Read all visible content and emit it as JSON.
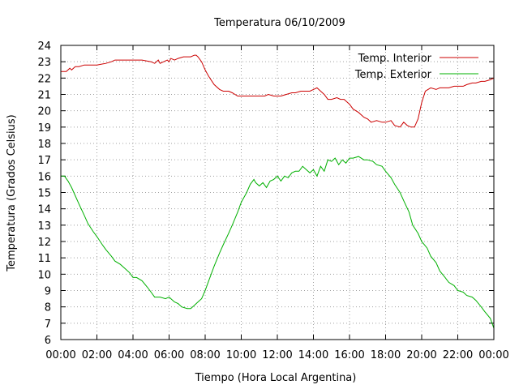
{
  "chart_data": {
    "type": "line",
    "title": "Temperatura 06/10/2009",
    "xlabel": "Tiempo (Hora Local Argentina)",
    "ylabel": "Temperatura (Grados Celsius)",
    "x_unit": "hours",
    "xlim": [
      0,
      24
    ],
    "ylim": [
      6,
      24
    ],
    "grid": true,
    "legend_position": "top-right",
    "x_ticks": [
      "00:00",
      "02:00",
      "04:00",
      "06:00",
      "08:00",
      "10:00",
      "12:00",
      "14:00",
      "16:00",
      "18:00",
      "20:00",
      "22:00",
      "00:00"
    ],
    "y_ticks": [
      "6",
      "7",
      "8",
      "9",
      "10",
      "11",
      "12",
      "13",
      "14",
      "15",
      "16",
      "17",
      "18",
      "19",
      "20",
      "21",
      "22",
      "23",
      "24"
    ],
    "series": [
      {
        "name": "Temp. Interior",
        "color": "#cc0000",
        "x": [
          0,
          0.3,
          0.5,
          0.6,
          0.8,
          1.0,
          1.3,
          1.5,
          1.7,
          2.0,
          2.5,
          2.8,
          3.0,
          3.3,
          3.7,
          4.0,
          4.5,
          5.0,
          5.2,
          5.4,
          5.5,
          5.7,
          5.9,
          6.0,
          6.1,
          6.3,
          6.5,
          6.8,
          7.0,
          7.2,
          7.4,
          7.5,
          7.6,
          7.8,
          8.0,
          8.2,
          8.5,
          8.8,
          9.0,
          9.3,
          9.5,
          9.8,
          10.0,
          10.3,
          10.5,
          10.8,
          11.0,
          11.3,
          11.5,
          11.8,
          12.0,
          12.2,
          12.5,
          12.8,
          13.0,
          13.3,
          13.5,
          13.7,
          13.8,
          14.0,
          14.2,
          14.4,
          14.6,
          14.8,
          15.0,
          15.3,
          15.5,
          15.7,
          16.0,
          16.2,
          16.5,
          16.8,
          17.0,
          17.2,
          17.5,
          17.8,
          18.0,
          18.3,
          18.5,
          18.8,
          19.0,
          19.2,
          19.4,
          19.6,
          19.8,
          20.0,
          20.2,
          20.5,
          20.8,
          21.0,
          21.3,
          21.5,
          21.8,
          22.0,
          22.3,
          22.5,
          22.8,
          23.0,
          23.3,
          23.5,
          23.8,
          24.0
        ],
        "values": [
          22.4,
          22.4,
          22.6,
          22.5,
          22.7,
          22.7,
          22.8,
          22.8,
          22.8,
          22.8,
          22.9,
          23.0,
          23.1,
          23.1,
          23.1,
          23.1,
          23.1,
          23.0,
          22.9,
          23.1,
          22.9,
          23.0,
          23.1,
          23.0,
          23.2,
          23.1,
          23.2,
          23.3,
          23.3,
          23.3,
          23.4,
          23.4,
          23.3,
          23.0,
          22.5,
          22.1,
          21.6,
          21.3,
          21.2,
          21.2,
          21.1,
          20.9,
          20.9,
          20.9,
          20.9,
          20.9,
          20.9,
          20.9,
          21.0,
          20.9,
          20.9,
          20.9,
          21.0,
          21.1,
          21.1,
          21.2,
          21.2,
          21.2,
          21.2,
          21.3,
          21.4,
          21.2,
          21.0,
          20.7,
          20.7,
          20.8,
          20.7,
          20.7,
          20.4,
          20.1,
          19.9,
          19.6,
          19.5,
          19.3,
          19.4,
          19.3,
          19.3,
          19.4,
          19.1,
          19.0,
          19.3,
          19.1,
          19.0,
          19.0,
          19.5,
          20.5,
          21.2,
          21.4,
          21.3,
          21.4,
          21.4,
          21.4,
          21.5,
          21.5,
          21.5,
          21.6,
          21.7,
          21.7,
          21.8,
          21.8,
          21.9,
          22.0
        ]
      },
      {
        "name": "Temp. Exterior",
        "color": "#00b000",
        "x": [
          0,
          0.2,
          0.4,
          0.6,
          0.8,
          1.0,
          1.3,
          1.5,
          1.8,
          2.0,
          2.3,
          2.5,
          2.8,
          3.0,
          3.3,
          3.5,
          3.8,
          4.0,
          4.2,
          4.5,
          4.8,
          5.0,
          5.2,
          5.5,
          5.8,
          6.0,
          6.3,
          6.5,
          6.7,
          7.0,
          7.2,
          7.4,
          7.6,
          7.8,
          8.0,
          8.2,
          8.5,
          8.8,
          9.0,
          9.3,
          9.5,
          9.8,
          10.0,
          10.3,
          10.5,
          10.7,
          10.8,
          11.0,
          11.2,
          11.4,
          11.6,
          11.8,
          12.0,
          12.2,
          12.4,
          12.6,
          12.8,
          13.0,
          13.2,
          13.4,
          13.6,
          13.8,
          14.0,
          14.2,
          14.4,
          14.6,
          14.8,
          15.0,
          15.2,
          15.4,
          15.6,
          15.8,
          16.0,
          16.2,
          16.5,
          16.8,
          17.0,
          17.3,
          17.5,
          17.8,
          18.0,
          18.3,
          18.5,
          18.8,
          19.0,
          19.3,
          19.5,
          19.8,
          20.0,
          20.3,
          20.5,
          20.8,
          21.0,
          21.3,
          21.5,
          21.8,
          22.0,
          22.3,
          22.5,
          22.8,
          23.0,
          23.3,
          23.5,
          23.8,
          24.0
        ],
        "values": [
          16.0,
          16.0,
          15.7,
          15.3,
          14.8,
          14.3,
          13.6,
          13.1,
          12.6,
          12.3,
          11.8,
          11.5,
          11.1,
          10.8,
          10.6,
          10.4,
          10.1,
          9.8,
          9.8,
          9.6,
          9.2,
          8.9,
          8.6,
          8.6,
          8.5,
          8.6,
          8.3,
          8.2,
          8.0,
          7.9,
          7.9,
          8.1,
          8.3,
          8.5,
          9.0,
          9.6,
          10.5,
          11.3,
          11.8,
          12.5,
          13.0,
          13.8,
          14.4,
          15.0,
          15.5,
          15.8,
          15.6,
          15.4,
          15.6,
          15.3,
          15.7,
          15.8,
          16.0,
          15.7,
          16.0,
          15.9,
          16.2,
          16.3,
          16.3,
          16.6,
          16.4,
          16.2,
          16.4,
          16.0,
          16.6,
          16.3,
          17.0,
          16.9,
          17.1,
          16.7,
          17.0,
          16.8,
          17.1,
          17.1,
          17.2,
          17.0,
          17.0,
          16.9,
          16.7,
          16.6,
          16.3,
          15.9,
          15.5,
          15.0,
          14.5,
          13.8,
          13.0,
          12.5,
          12.0,
          11.6,
          11.1,
          10.7,
          10.2,
          9.8,
          9.5,
          9.3,
          9.0,
          8.9,
          8.7,
          8.6,
          8.4,
          8.0,
          7.7,
          7.3,
          6.7
        ]
      }
    ]
  }
}
